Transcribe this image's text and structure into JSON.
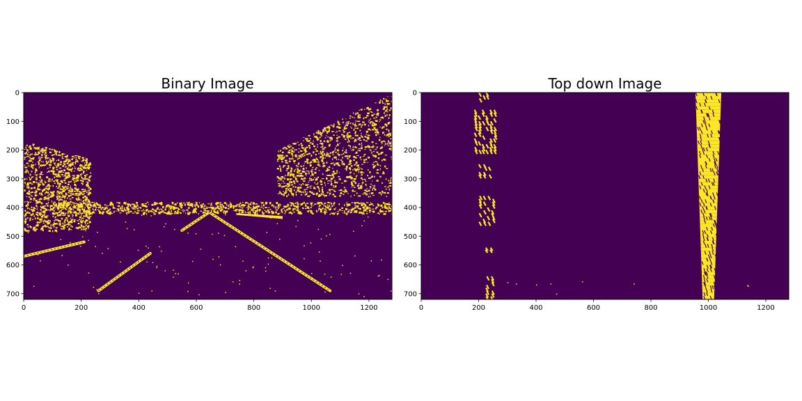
{
  "chart_data": [
    {
      "type": "heatmap",
      "title": "Binary Image",
      "xlim": [
        0,
        1280
      ],
      "ylim": [
        720,
        0
      ],
      "xticks": [
        "0",
        "200",
        "400",
        "600",
        "800",
        "1000",
        "1200"
      ],
      "yticks": [
        "0",
        "100",
        "200",
        "300",
        "400",
        "500",
        "600",
        "700"
      ],
      "colors": {
        "background": "#440154",
        "foreground": "#fde725"
      },
      "lane_lines": [
        {
          "name": "left-lane-line",
          "points": [
            [
              0,
              570
            ],
            [
              210,
              520
            ]
          ]
        },
        {
          "name": "left-lane-line-near",
          "points": [
            [
              260,
              690
            ],
            [
              440,
              560
            ]
          ]
        },
        {
          "name": "right-lane-line",
          "points": [
            [
              650,
              420
            ],
            [
              1065,
              690
            ]
          ]
        },
        {
          "name": "left-lane-line-far",
          "points": [
            [
              550,
              480
            ],
            [
              640,
              420
            ]
          ]
        }
      ],
      "noise_regions": [
        {
          "name": "left-roadside-edges",
          "x": [
            0,
            230
          ],
          "y": [
            170,
            480
          ]
        },
        {
          "name": "horizon-edges",
          "x": [
            100,
            1280
          ],
          "y": [
            380,
            420
          ]
        },
        {
          "name": "right-roadside-edges",
          "x": [
            880,
            1280
          ],
          "y": [
            0,
            360
          ]
        }
      ]
    },
    {
      "type": "heatmap",
      "title": "Top down Image",
      "xlim": [
        0,
        1280
      ],
      "ylim": [
        720,
        0
      ],
      "xticks": [
        "0",
        "200",
        "400",
        "600",
        "800",
        "1000",
        "1200"
      ],
      "yticks": [
        "0",
        "100",
        "200",
        "300",
        "400",
        "500",
        "600",
        "700"
      ],
      "colors": {
        "background": "#440154",
        "foreground": "#fde725"
      },
      "lane_segments": [
        {
          "name": "left-lane-segment",
          "x": [
            200,
            240
          ],
          "y": [
            0,
            30
          ]
        },
        {
          "name": "left-lane-segment",
          "x": [
            185,
            265
          ],
          "y": [
            60,
            210
          ]
        },
        {
          "name": "left-lane-segment",
          "x": [
            200,
            250
          ],
          "y": [
            250,
            295
          ]
        },
        {
          "name": "left-lane-segment",
          "x": [
            200,
            260
          ],
          "y": [
            360,
            460
          ]
        },
        {
          "name": "left-lane-segment",
          "x": [
            220,
            255
          ],
          "y": [
            540,
            555
          ]
        },
        {
          "name": "left-lane-segment",
          "x": [
            225,
            260
          ],
          "y": [
            640,
            720
          ]
        }
      ],
      "right_lane": {
        "top": [
          955,
          1045
        ],
        "bottom": [
          980,
          1020
        ]
      }
    }
  ]
}
